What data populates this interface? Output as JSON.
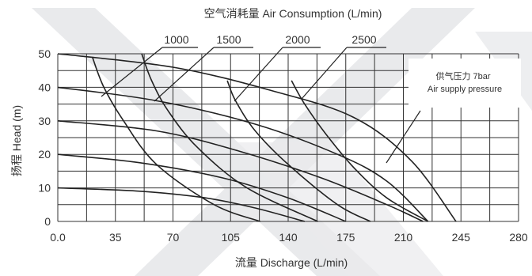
{
  "chart_data": {
    "type": "line",
    "title": "空气消耗量  Air Consumption (L/min)",
    "xlabel": "流量 Discharge (L/min)",
    "ylabel": "扬程 Head (m)",
    "xlim": [
      0,
      280
    ],
    "ylim": [
      0,
      50
    ],
    "x_ticks": [
      "0.0",
      "35",
      "70",
      "105",
      "140",
      "175",
      "210",
      "245",
      "280"
    ],
    "y_ticks": [
      "0",
      "10",
      "20",
      "30",
      "40",
      "50"
    ],
    "grid": true,
    "annotation": {
      "line1": "供气压力 7bar",
      "line2": "Air supply pressure"
    },
    "pressure_curves": [
      {
        "name": "",
        "points": [
          [
            0,
            10
          ],
          [
            50,
            9
          ],
          [
            90,
            7
          ],
          [
            120,
            4
          ],
          [
            150,
            0
          ]
        ]
      },
      {
        "name": "",
        "points": [
          [
            0,
            20
          ],
          [
            50,
            17.5
          ],
          [
            100,
            13
          ],
          [
            140,
            7
          ],
          [
            175,
            0
          ]
        ]
      },
      {
        "name": "",
        "points": [
          [
            0,
            30
          ],
          [
            60,
            27
          ],
          [
            110,
            21
          ],
          [
            160,
            13
          ],
          [
            200,
            5
          ],
          [
            222,
            0
          ]
        ]
      },
      {
        "name": "",
        "points": [
          [
            0,
            40
          ],
          [
            60,
            36
          ],
          [
            120,
            29
          ],
          [
            170,
            20
          ],
          [
            200,
            12
          ],
          [
            225,
            0
          ]
        ]
      },
      {
        "name": "",
        "points": [
          [
            0,
            50
          ],
          [
            70,
            46
          ],
          [
            130,
            39
          ],
          [
            180,
            31
          ],
          [
            215,
            18
          ],
          [
            242,
            0
          ]
        ]
      }
    ],
    "air_consumption_curves": [
      {
        "name": "1000",
        "points": [
          [
            21,
            49
          ],
          [
            28,
            40
          ],
          [
            40,
            30
          ],
          [
            60,
            17
          ],
          [
            95,
            5
          ],
          [
            123,
            0
          ]
        ]
      },
      {
        "name": "1500",
        "points": [
          [
            51,
            50
          ],
          [
            57,
            42
          ],
          [
            67,
            33
          ],
          [
            85,
            22
          ],
          [
            115,
            10
          ],
          [
            158,
            0
          ]
        ]
      },
      {
        "name": "2000",
        "points": [
          [
            103,
            42
          ],
          [
            108,
            36
          ],
          [
            120,
            27
          ],
          [
            140,
            17
          ],
          [
            170,
            5
          ],
          [
            190,
            0
          ]
        ]
      },
      {
        "name": "2500",
        "points": [
          [
            142,
            42
          ],
          [
            150,
            35
          ],
          [
            163,
            26
          ],
          [
            180,
            16
          ],
          [
            200,
            7
          ],
          [
            225,
            0
          ]
        ]
      }
    ]
  }
}
